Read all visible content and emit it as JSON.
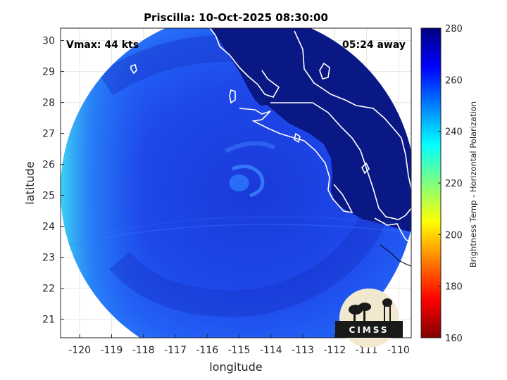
{
  "chart_data": {
    "type": "heatmap",
    "title": "Priscilla: 10-Oct-2025 08:30:00",
    "xlabel": "longitude",
    "ylabel": "latitude",
    "xlim": [
      -120.6,
      -109.6
    ],
    "ylim": [
      20.4,
      30.4
    ],
    "xticks": [
      -120,
      -119,
      -118,
      -117,
      -116,
      -115,
      -114,
      -113,
      -112,
      -111,
      -110
    ],
    "yticks": [
      21,
      22,
      23,
      24,
      25,
      26,
      27,
      28,
      29,
      30
    ],
    "grid": true,
    "annotations": {
      "left": "Vmax: 44 kts",
      "right": "05:24 away"
    },
    "colorbar": {
      "label": "Brightness Temp - Horizontal Polarization",
      "min": 160,
      "max": 280,
      "ticks": [
        160,
        180,
        200,
        220,
        240,
        260,
        280
      ],
      "colormap": "jet"
    },
    "storm_center": {
      "lon": -115.0,
      "lat": 25.4
    },
    "swath": {
      "center_lon": -114.9,
      "center_lat": 25.0,
      "radius_deg": 5.5
    }
  },
  "logo": {
    "text": "CIMSS"
  },
  "colors": {
    "deep_blue": "#1a3ad8",
    "ocean_blue": "#1f52f0",
    "land_navy": "#0a1885",
    "edge_cyan": "#5ff0d8",
    "coastline": "#ffffff"
  }
}
